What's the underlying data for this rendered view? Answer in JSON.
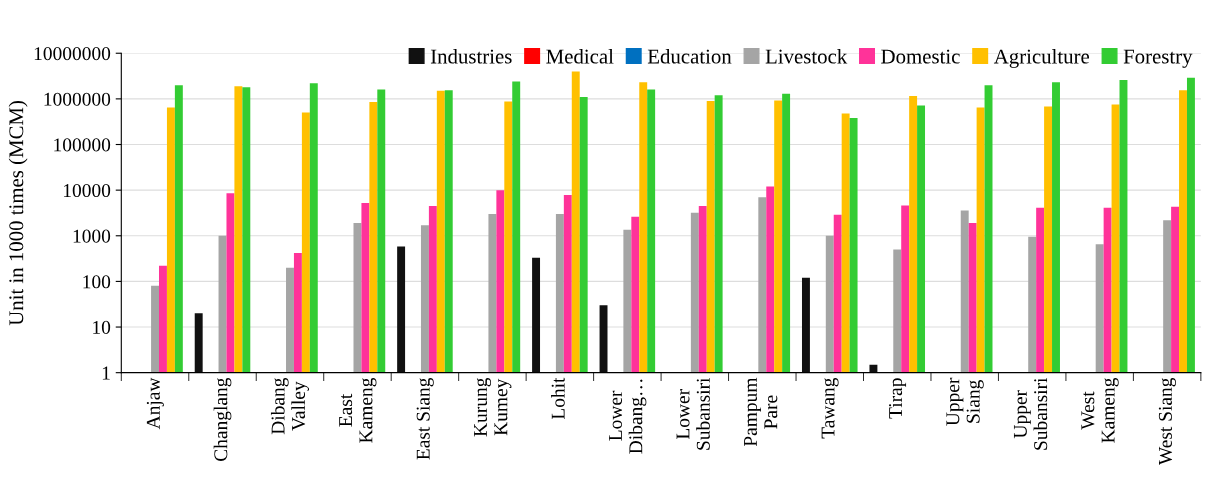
{
  "chart_data": {
    "type": "bar",
    "ylabel": "Unit in 1000 times (MCM)",
    "categories": [
      "Anjaw",
      "Changlang",
      "Dibang\nValley",
      "East\nKameng",
      "East Siang",
      "Kurung\nKumey",
      "Lohit",
      "Lower\nDibang…",
      "Lower\nSubansiri",
      "Pampum\nPare",
      "Tawang",
      "Tirap",
      "Upper\nSiang",
      "Upper\nSubansiri",
      "West\nKameng",
      "West Siang"
    ],
    "series": [
      {
        "name": "Industries",
        "color": "#111111",
        "values": [
          null,
          20,
          null,
          null,
          580,
          null,
          330,
          30,
          null,
          null,
          120,
          1.5,
          null,
          null,
          null,
          null
        ]
      },
      {
        "name": "Medical",
        "color": "#ff0000",
        "values": [
          null,
          null,
          null,
          null,
          null,
          null,
          null,
          null,
          null,
          null,
          null,
          null,
          null,
          null,
          null,
          null
        ]
      },
      {
        "name": "Education",
        "color": "#0070c0",
        "values": [
          null,
          null,
          null,
          null,
          null,
          null,
          null,
          null,
          null,
          null,
          null,
          null,
          null,
          null,
          null,
          null
        ]
      },
      {
        "name": "Livestock",
        "color": "#a5a5a5",
        "values": [
          80,
          1000,
          200,
          1900,
          1700,
          3000,
          3000,
          1350,
          3200,
          7000,
          1000,
          500,
          3600,
          950,
          650,
          2200
        ]
      },
      {
        "name": "Domestic",
        "color": "#ff3399",
        "values": [
          220,
          8500,
          420,
          5200,
          4500,
          10000,
          7800,
          2600,
          4500,
          12000,
          2900,
          4600,
          1900,
          4100,
          4100,
          4300
        ]
      },
      {
        "name": "Agriculture",
        "color": "#ffc000",
        "values": [
          650000,
          1900000,
          500000,
          850000,
          1500000,
          880000,
          4000000,
          2300000,
          900000,
          920000,
          480000,
          1150000,
          650000,
          680000,
          750000,
          1550000
        ]
      },
      {
        "name": "Forestry",
        "color": "#33cc33",
        "values": [
          2000000,
          1800000,
          2200000,
          1600000,
          1550000,
          2400000,
          1100000,
          1600000,
          1200000,
          1300000,
          380000,
          720000,
          2000000,
          2300000,
          2600000,
          2900000
        ]
      }
    ],
    "log": "y",
    "ylim": [
      1,
      10000000
    ],
    "yticks": [
      1,
      10,
      100,
      1000,
      10000,
      100000,
      1000000,
      10000000
    ],
    "grid": "y",
    "legend": "top right"
  }
}
